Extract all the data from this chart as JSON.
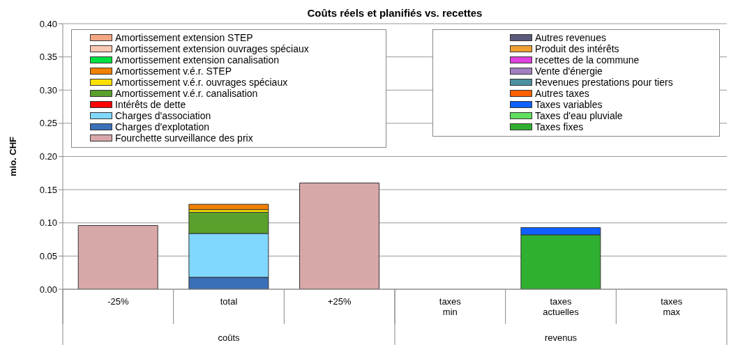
{
  "chart_data": {
    "type": "bar",
    "title": "Coûts réels et planifiés vs. recettes",
    "ylabel": "mio. CHF",
    "categories": [
      "-25%",
      "total",
      "+25%",
      "taxes min",
      "taxes actuelles",
      "taxes max"
    ],
    "stacked": true,
    "grid": "y",
    "legend": "top",
    "ylim": [
      0,
      0.4
    ],
    "yticks": [
      {
        "value": 0,
        "label": "0.00"
      },
      {
        "value": 0.05,
        "label": "0.05"
      },
      {
        "value": 0.1,
        "label": "0.10"
      },
      {
        "value": 0.15,
        "label": "0.15"
      },
      {
        "value": 0.2,
        "label": "0.20"
      },
      {
        "value": 0.25,
        "label": "0.25"
      },
      {
        "value": 0.3,
        "label": "0.30"
      },
      {
        "value": 0.35,
        "label": "0.35"
      },
      {
        "value": 0.4,
        "label": "0.40"
      }
    ],
    "annotations": [
      "coûts",
      "revenus"
    ],
    "series": [
      {
        "name": "Fourchette surveillance des prix",
        "color": "#d8a8a8",
        "values": [
          0.096,
          null,
          0.16,
          null,
          null,
          null
        ]
      },
      {
        "name": "Charges d'explotation",
        "color": "#3a70b8",
        "values": [
          null,
          0.018,
          null,
          null,
          null,
          null
        ]
      },
      {
        "name": "Charges d'association",
        "color": "#80d8ff",
        "values": [
          null,
          0.066,
          null,
          null,
          null,
          null
        ]
      },
      {
        "name": "Intérêts de dette",
        "color": "#ff0000",
        "values": [
          null,
          null,
          null,
          null,
          null,
          null
        ]
      },
      {
        "name": "Amortissement v.é.r. canalisation",
        "color": "#5aa02c",
        "values": [
          null,
          0.032,
          null,
          null,
          null,
          null
        ]
      },
      {
        "name": "Amortissement v.é.r. ouvrages spéciaux",
        "color": "#ffe000",
        "values": [
          null,
          0.004,
          null,
          null,
          null,
          null
        ]
      },
      {
        "name": "Amortissement v.é.r. STEP",
        "color": "#f08000",
        "values": [
          null,
          0.008,
          null,
          null,
          null,
          null
        ]
      },
      {
        "name": "Amortissement extension canalisation",
        "color": "#00e040",
        "values": [
          null,
          null,
          null,
          null,
          null,
          null
        ]
      },
      {
        "name": "Amortissement extension ouvrages spéciaux",
        "color": "#f8c8b0",
        "values": [
          null,
          null,
          null,
          null,
          null,
          null
        ]
      },
      {
        "name": "Amortissement extension STEP",
        "color": "#f4a582",
        "values": [
          null,
          null,
          null,
          null,
          null,
          null
        ]
      },
      {
        "name": "Taxes fixes",
        "color": "#30b030",
        "values": [
          null,
          null,
          null,
          null,
          0.082,
          null
        ]
      },
      {
        "name": "Taxes d'eau pluviale",
        "color": "#60e060",
        "values": [
          null,
          null,
          null,
          null,
          null,
          null
        ]
      },
      {
        "name": "Taxes variables",
        "color": "#1060ff",
        "values": [
          null,
          null,
          null,
          null,
          0.011,
          null
        ]
      },
      {
        "name": "Autres taxes",
        "color": "#ff6000",
        "values": [
          null,
          null,
          null,
          null,
          null,
          null
        ]
      },
      {
        "name": "Revenues prestations pour tiers",
        "color": "#4a90a0",
        "values": [
          null,
          null,
          null,
          null,
          null,
          null
        ]
      },
      {
        "name": "Vente d'énergie",
        "color": "#a080c0",
        "values": [
          null,
          null,
          null,
          null,
          null,
          null
        ]
      },
      {
        "name": "recettes de la commune",
        "color": "#e040e0",
        "values": [
          null,
          null,
          null,
          null,
          null,
          null
        ]
      },
      {
        "name": "Produit des intérêts",
        "color": "#f0a030",
        "values": [
          null,
          null,
          null,
          null,
          null,
          null
        ]
      },
      {
        "name": "Autres revenues",
        "color": "#5a5a7a",
        "values": [
          null,
          null,
          null,
          null,
          null,
          null
        ]
      }
    ]
  }
}
